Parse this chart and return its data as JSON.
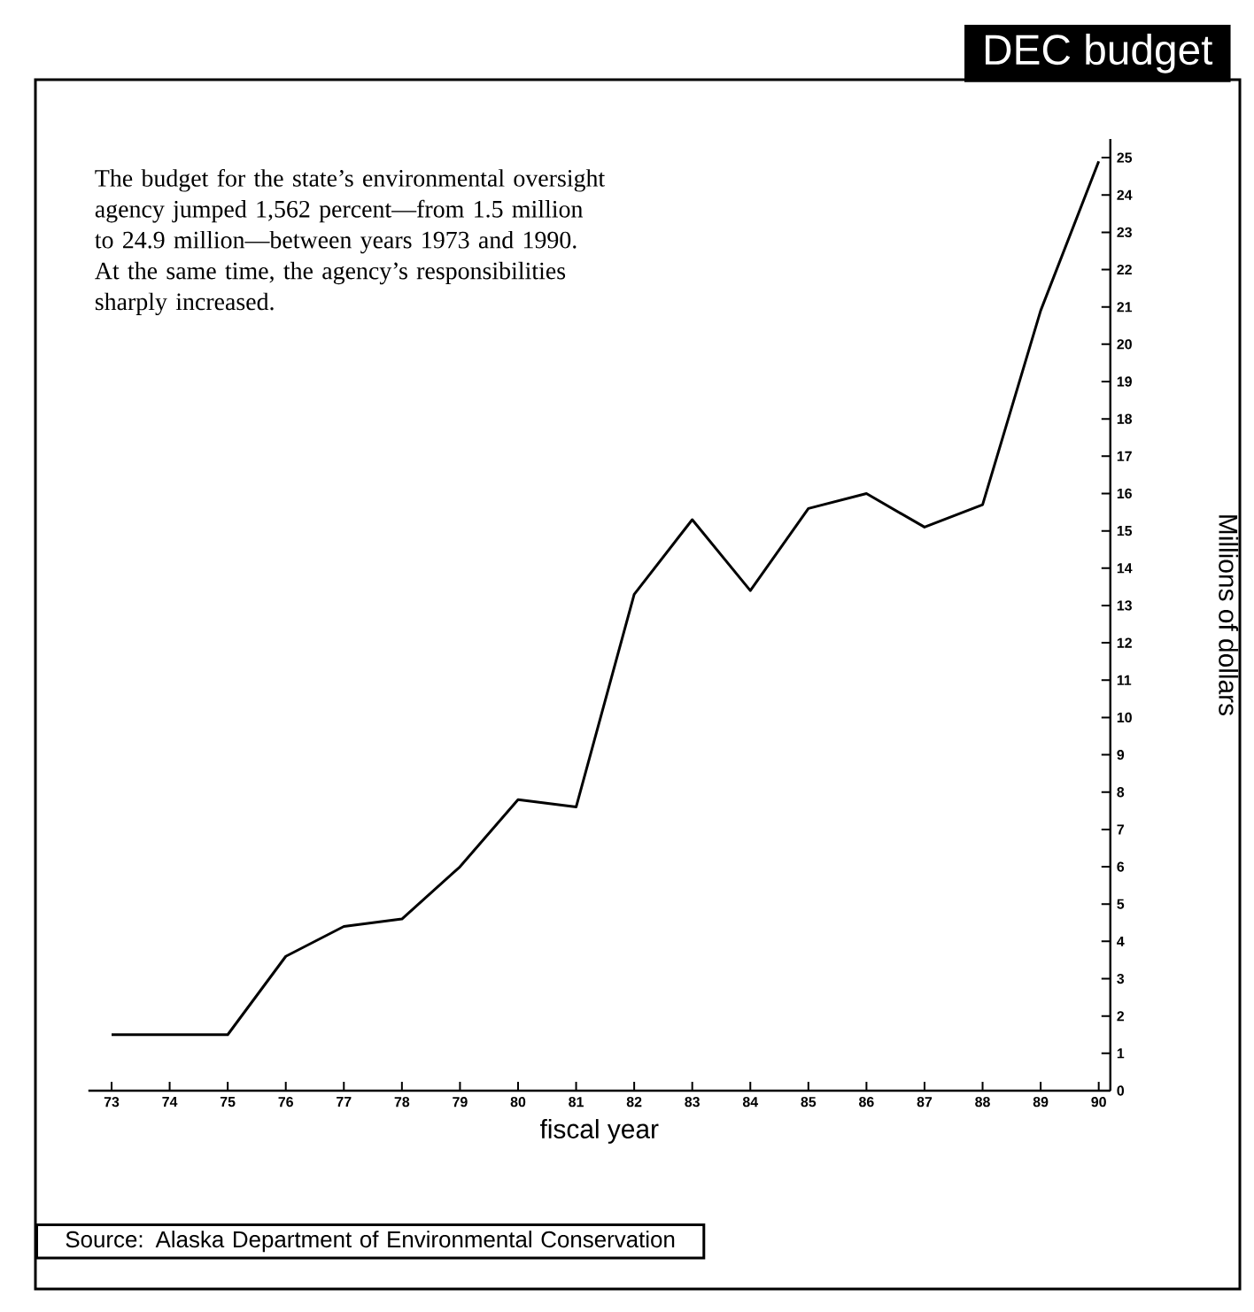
{
  "chart_data": {
    "type": "line",
    "title": "DEC budget",
    "xlabel": "fiscal year",
    "ylabel": "Millions of dollars",
    "categories": [
      "73",
      "74",
      "75",
      "76",
      "77",
      "78",
      "79",
      "80",
      "81",
      "82",
      "83",
      "84",
      "85",
      "86",
      "87",
      "88",
      "89",
      "90"
    ],
    "series": [
      {
        "color": "#000000",
        "values": [
          1.5,
          1.5,
          1.5,
          3.6,
          4.4,
          4.6,
          6.0,
          7.8,
          7.6,
          13.3,
          15.3,
          13.4,
          15.6,
          16.0,
          15.1,
          15.7,
          20.9,
          24.9
        ]
      }
    ],
    "ylim": [
      0,
      25.5
    ],
    "yticks": [
      0,
      1,
      2,
      3,
      4,
      5,
      6,
      7,
      8,
      9,
      10,
      11,
      12,
      13,
      14,
      15,
      16,
      17,
      18,
      19,
      20,
      21,
      22,
      23,
      24,
      25
    ],
    "grid": false,
    "marker": "none",
    "line_style": "solid",
    "annotations": [
      "The budget for the state’s environmental oversight agency jumped 1,562 percent—from 1.5 million to 24.9 million—between years 1973 and 1990. At the same time, the agency’s responsibilities sharply increased.",
      "Source: Alaska Department of Environmental Conservation"
    ]
  }
}
